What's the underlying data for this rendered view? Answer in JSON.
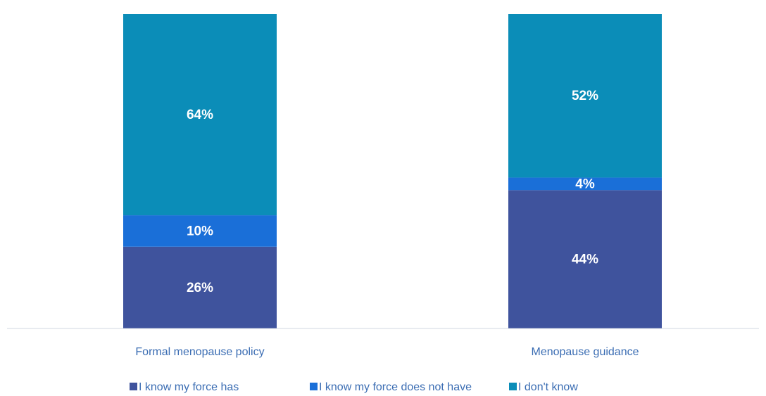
{
  "chart_data": {
    "type": "stacked_bar",
    "categories": [
      "Formal menopause policy",
      "Menopause guidance"
    ],
    "series": [
      {
        "name": "I know my force has",
        "color": "#3f539d",
        "values": [
          26,
          44
        ],
        "value_labels": [
          "26%",
          "44%"
        ]
      },
      {
        "name": "I know my force does not have",
        "color": "#1a6fd8",
        "values": [
          10,
          4
        ],
        "value_labels": [
          "10%",
          "4%"
        ]
      },
      {
        "name": "I don't know",
        "color": "#0b8db8",
        "values": [
          64,
          52
        ],
        "value_labels": [
          "64%",
          "52%"
        ]
      }
    ],
    "ylim": [
      0,
      100
    ],
    "legend": "bottom"
  }
}
